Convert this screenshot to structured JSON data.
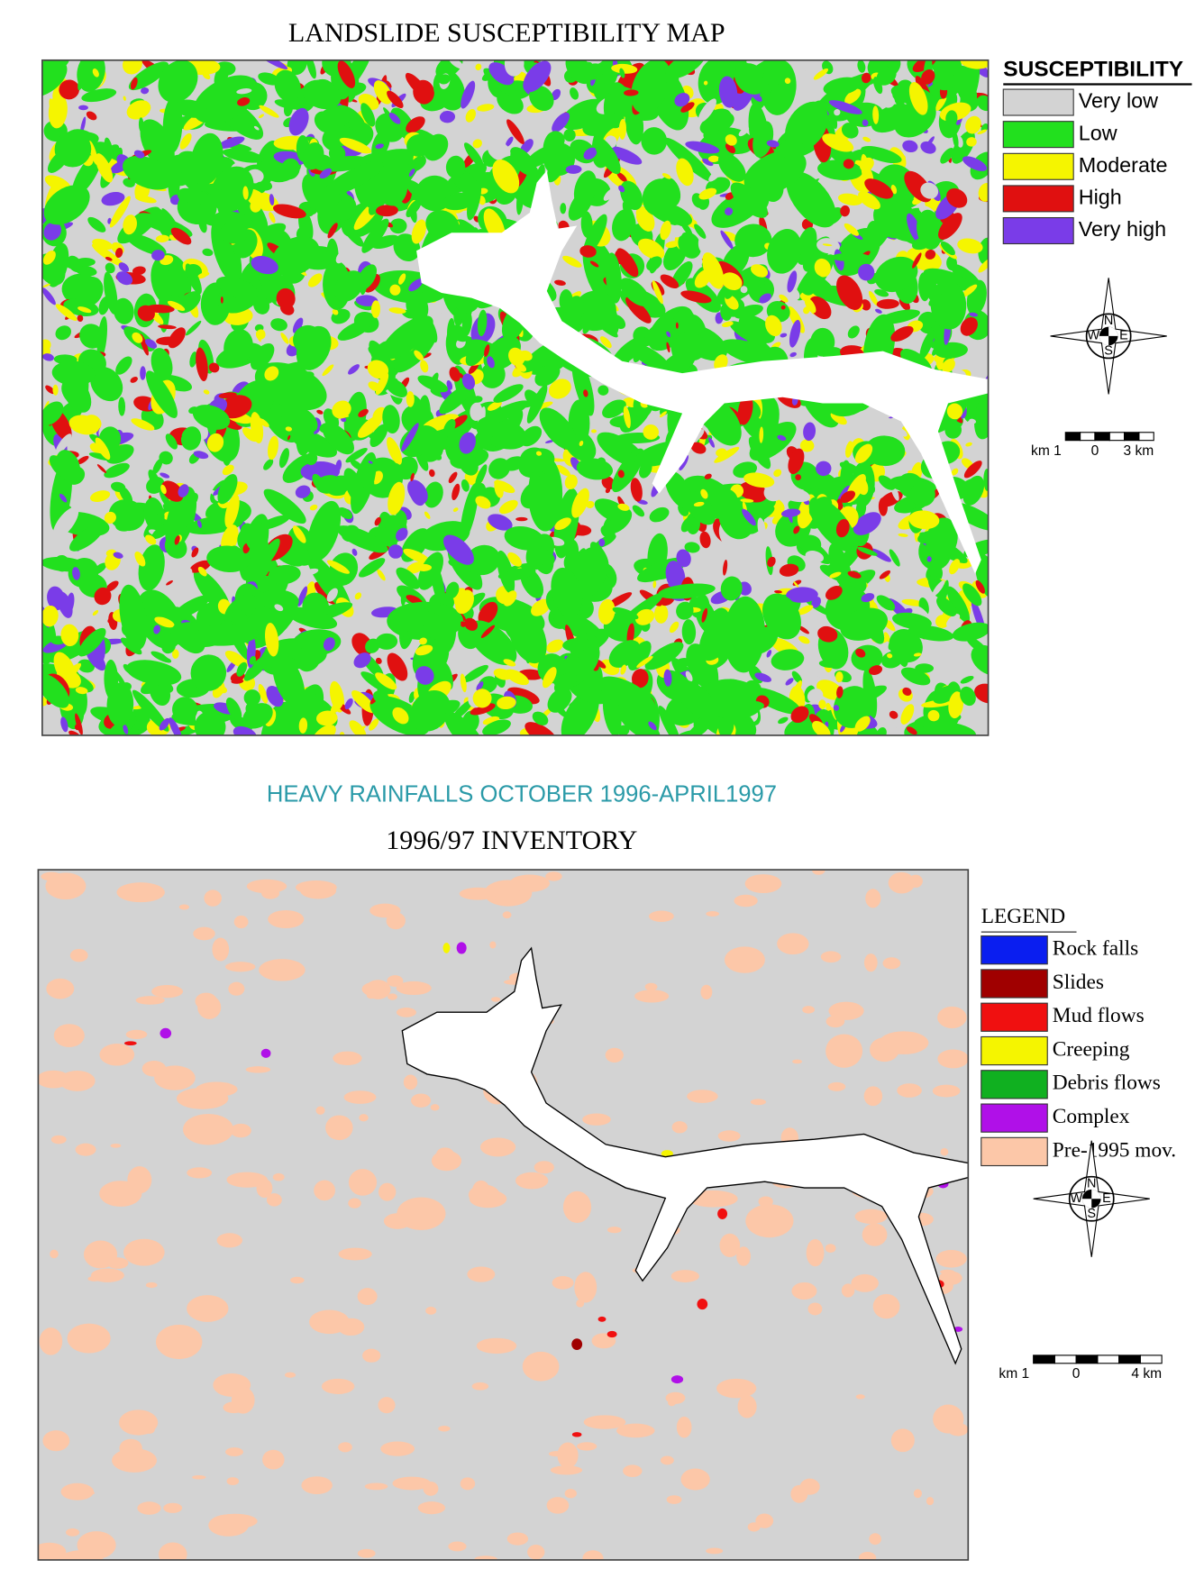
{
  "susceptibility_map": {
    "title": "LANDSLIDE SUSCEPTIBILITY MAP",
    "legend": {
      "title": "SUSCEPTIBILITY",
      "items": [
        {
          "label": "Very low",
          "color": "#d3d3d3"
        },
        {
          "label": "Low",
          "color": "#22e01e"
        },
        {
          "label": "Moderate",
          "color": "#f5f500"
        },
        {
          "label": "High",
          "color": "#e01010"
        },
        {
          "label": "Very high",
          "color": "#7a3ce8"
        }
      ]
    },
    "compass": {
      "n": "N",
      "w": "W",
      "e": "E",
      "s": "S"
    },
    "scale": [
      "km 1",
      "0",
      "3 km"
    ]
  },
  "inventory_map": {
    "subtitle": "HEAVY RAINFALLS OCTOBER 1996-APRIL1997",
    "title": "1996/97 INVENTORY",
    "legend": {
      "title": "LEGEND",
      "items": [
        {
          "label": "Rock falls",
          "color": "#0a1ef0"
        },
        {
          "label": "Slides",
          "color": "#a00000"
        },
        {
          "label": "Mud flows",
          "color": "#f01010"
        },
        {
          "label": "Creeping",
          "color": "#f5f500"
        },
        {
          "label": "Debris flows",
          "color": "#10b020"
        },
        {
          "label": "Complex",
          "color": "#b010e8"
        },
        {
          "label": "Pre-1995 mov.",
          "color": "#fcc7a8"
        }
      ]
    },
    "compass": {
      "n": "N",
      "w": "W",
      "e": "E",
      "s": "S"
    },
    "scale": [
      "km 1",
      "0",
      "4 km"
    ]
  }
}
